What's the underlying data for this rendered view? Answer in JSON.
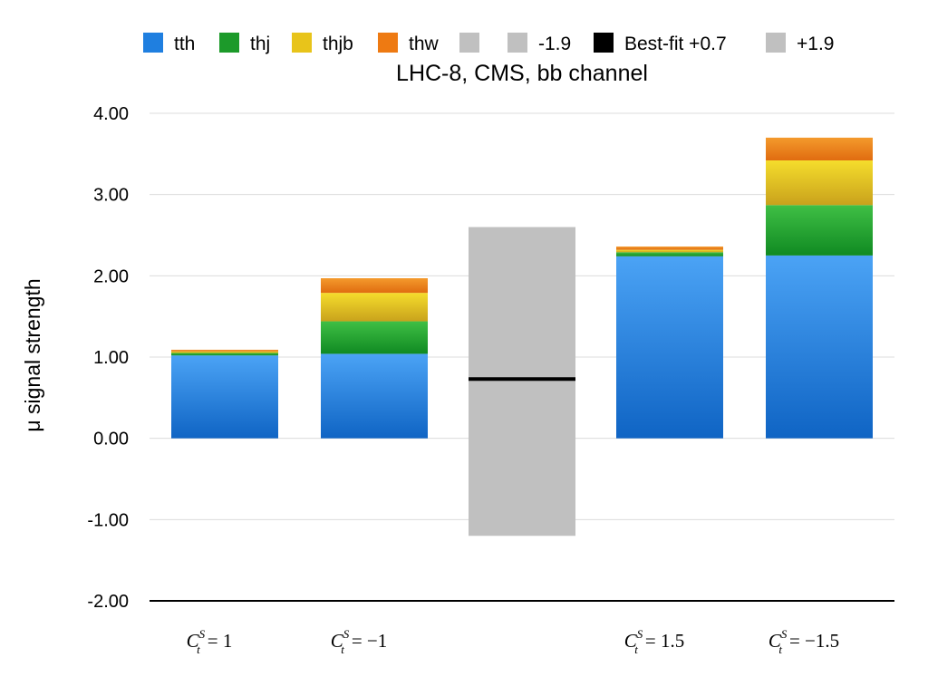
{
  "chart_data": {
    "type": "bar",
    "stacked": true,
    "title": "LHC-8, CMS, bb channel",
    "xlabel": "",
    "ylabel": "μ signal strength",
    "ylim": [
      -2,
      4
    ],
    "yticks": [
      4,
      3,
      2,
      1,
      0,
      -1,
      -2
    ],
    "ytick_labels": [
      "4.00",
      "3.00",
      "2.00",
      "1.00",
      "0.00",
      "-1.00",
      "-2.00"
    ],
    "grid": true,
    "legend_position": "top",
    "categories": [
      {
        "base": "C",
        "sup": "S",
        "sub": "t",
        "rhs": "= 1"
      },
      {
        "base": "C",
        "sup": "S",
        "sub": "t",
        "rhs": "= −1"
      },
      {
        "base": "",
        "sup": "",
        "sub": "",
        "rhs": ""
      },
      {
        "base": "C",
        "sup": "S",
        "sub": "t",
        "rhs": "= 1.5"
      },
      {
        "base": "C",
        "sup": "S",
        "sub": "t",
        "rhs": "= −1.5"
      }
    ],
    "series": [
      {
        "name": "tth",
        "color": "#1f7fe0",
        "values": [
          1.02,
          1.04,
          0,
          2.24,
          2.25
        ]
      },
      {
        "name": "thj",
        "color": "#1c9a2a",
        "values": [
          0.03,
          0.4,
          0,
          0.05,
          0.62
        ]
      },
      {
        "name": "thjb",
        "color": "#e8c41a",
        "values": [
          0.02,
          0.35,
          0,
          0.03,
          0.55
        ]
      },
      {
        "name": "thw",
        "color": "#ee7a12",
        "values": [
          0.02,
          0.18,
          0,
          0.04,
          0.28
        ]
      }
    ],
    "band": {
      "category_index": 2,
      "low": -1.2,
      "high": 2.6,
      "best_fit": 0.73,
      "band_color": "#c0c0c0",
      "best_fit_color": "#000000"
    },
    "legend": [
      {
        "label": "tth",
        "color": "#1f7fe0"
      },
      {
        "label": "thj",
        "color": "#1c9a2a"
      },
      {
        "label": "thjb",
        "color": "#e8c41a"
      },
      {
        "label": "thw",
        "color": "#ee7a12"
      },
      {
        "label": "",
        "color": "#c0c0c0"
      },
      {
        "label": "-1.9",
        "color": "#c0c0c0"
      },
      {
        "label": "Best-fit +0.7",
        "color": "#000000"
      },
      {
        "label": "+1.9",
        "color": "#c0c0c0"
      }
    ]
  }
}
